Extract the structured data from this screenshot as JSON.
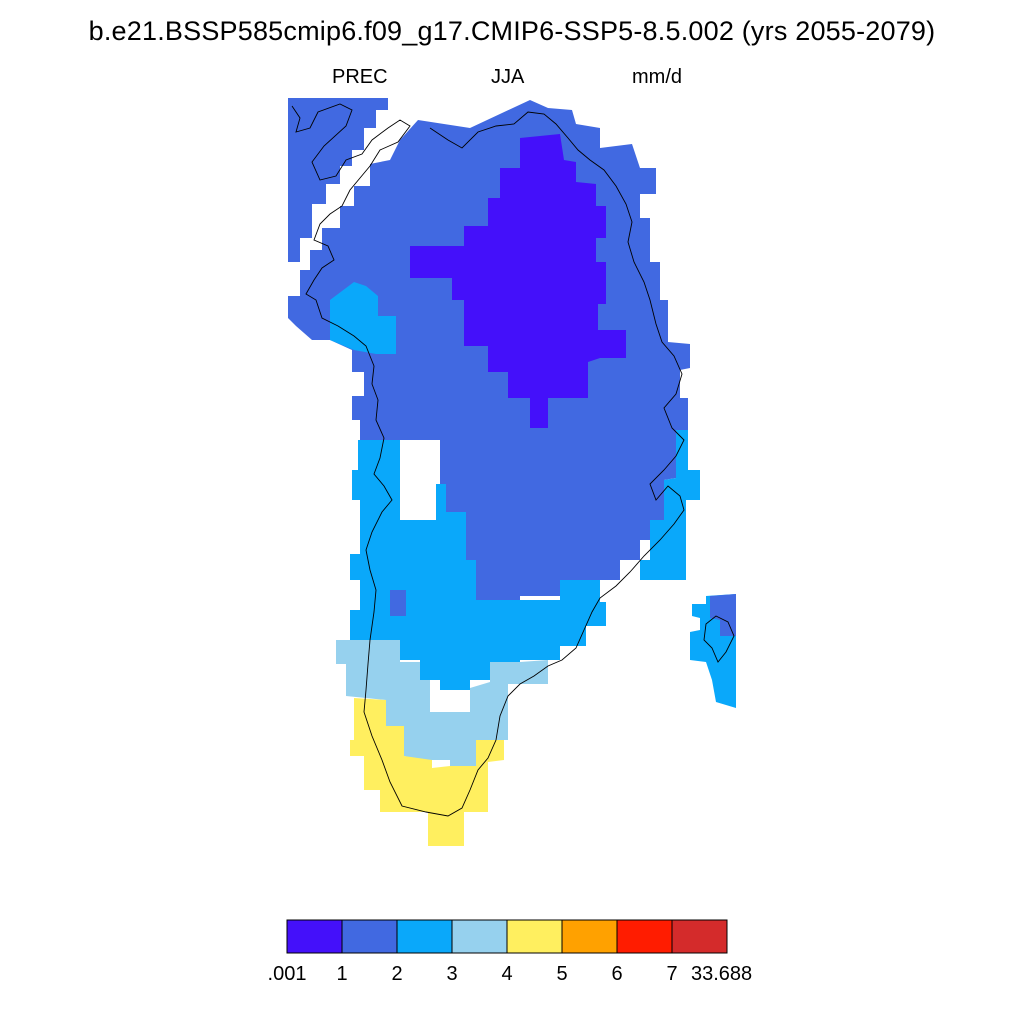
{
  "title": "b.e21.BSSP585cmip6.f09_g17.CMIP6-SSP5-8.5.002 (yrs 2055-2079)",
  "subtitle": {
    "variable": "PREC",
    "season": "JJA",
    "units": "mm/d"
  },
  "colorbar": {
    "colors": [
      "#4410fa",
      "#4169e1",
      "#0aa8fa",
      "#96d1ee",
      "#ffef5f",
      "#ffa100",
      "#ff1c00",
      "#d42b2b"
    ],
    "labels": [
      ".001",
      "1",
      "2",
      "3",
      "4",
      "5",
      "6",
      "7",
      "33.688"
    ]
  },
  "map": {
    "region": "Greenland",
    "value_bins": [
      "0.001-1",
      "1-2",
      "2-3",
      "3-4",
      "4-5"
    ],
    "bin_colors": [
      "#4410fa",
      "#4169e1",
      "#0aa8fa",
      "#96d1ee",
      "#ffef5f"
    ]
  }
}
